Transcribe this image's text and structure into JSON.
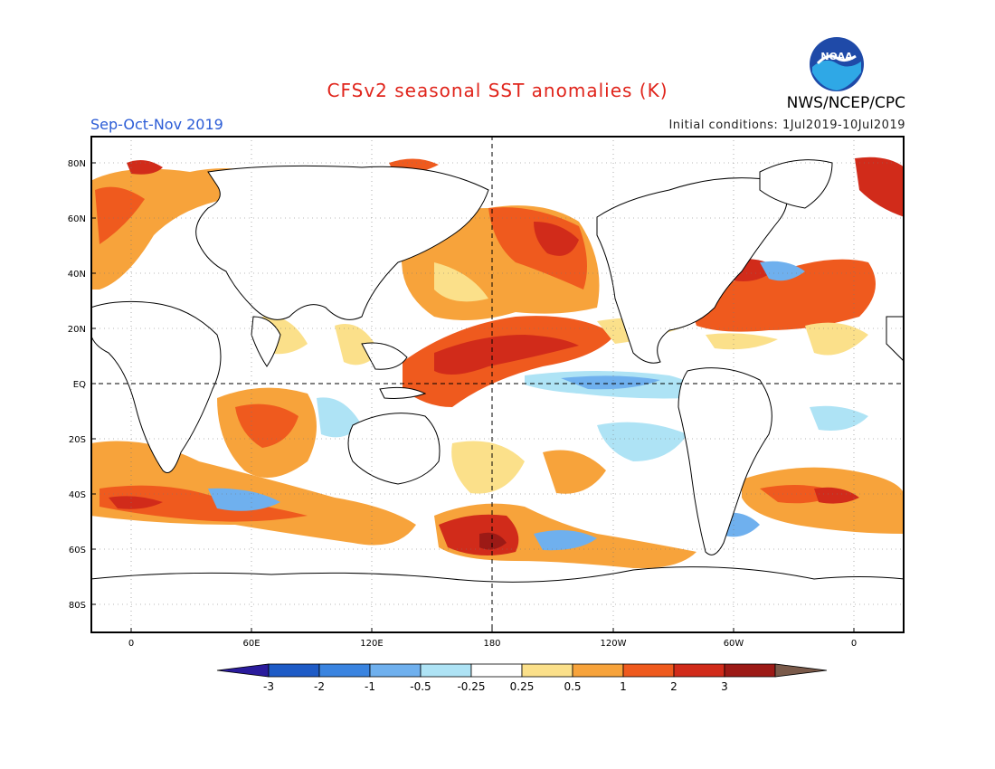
{
  "header": {
    "title": "CFSv2 seasonal SST anomalies (K)",
    "season": "Sep-Oct-Nov 2019",
    "initial_conditions": "Initial conditions: 1Jul2019-10Jul2019",
    "agency": "NWS/NCEP/CPC",
    "logo_text": "NOAA"
  },
  "map": {
    "lat_labels": [
      "80N",
      "60N",
      "40N",
      "20N",
      "EQ",
      "20S",
      "40S",
      "60S",
      "80S"
    ],
    "lon_labels": [
      "0",
      "60E",
      "120E",
      "180",
      "120W",
      "60W",
      "0"
    ]
  },
  "colorbar": {
    "labels": [
      "-3",
      "-2",
      "-1",
      "-0.5",
      "-0.25",
      "0.25",
      "0.5",
      "1",
      "2",
      "3"
    ],
    "colors": [
      "#2a1b9c",
      "#1e5bc6",
      "#3a84e0",
      "#6fb0ee",
      "#aee3f5",
      "#ffffff",
      "#fbe08a",
      "#f7a33b",
      "#ef5a1e",
      "#d12b1a",
      "#9c1a16",
      "#7a5a4a"
    ]
  }
}
